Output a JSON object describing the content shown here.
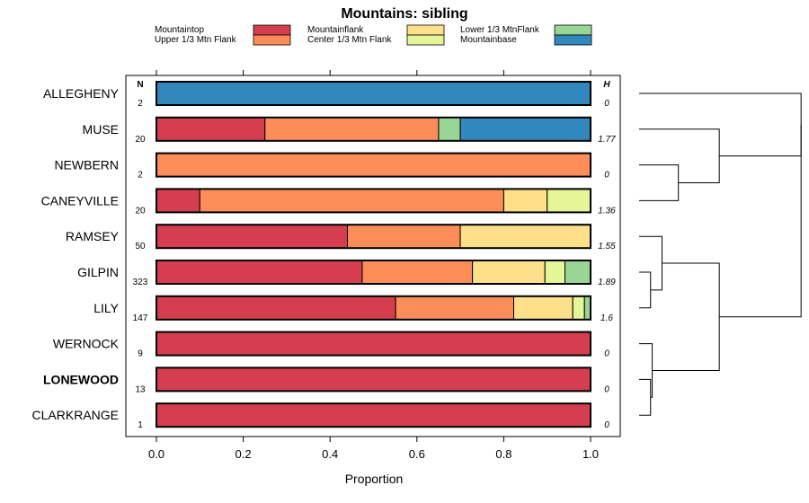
{
  "chart_data": {
    "type": "bar",
    "orientation": "horizontal",
    "stacked": true,
    "title": "Mountains: sibling",
    "xlabel": "Proportion",
    "ylabel": "",
    "xlim": [
      0,
      1
    ],
    "xticks": [
      "0.0",
      "0.2",
      "0.4",
      "0.6",
      "0.8",
      "1.0"
    ],
    "n_header": "N",
    "h_header": "H",
    "legend": [
      {
        "name": "Mountaintop",
        "color": "#d53e4f"
      },
      {
        "name": "Upper 1/3 Mtn Flank",
        "color": "#fc8d59"
      },
      {
        "name": "Mountainflank",
        "color": "#fee08b"
      },
      {
        "name": "Center 1/3 Mtn Flank",
        "color": "#e6f598"
      },
      {
        "name": "Lower 1/3 MtnFlank",
        "color": "#99d594"
      },
      {
        "name": "Mountainbase",
        "color": "#3288bd"
      }
    ],
    "categories": [
      "ALLEGHENY",
      "MUSE",
      "NEWBERN",
      "CANEYVILLE",
      "RAMSEY",
      "GILPIN",
      "LILY",
      "WERNOCK",
      "LONEWOOD",
      "CLARKRANGE"
    ],
    "bold_category": "LONEWOOD",
    "n_values": [
      "2",
      "20",
      "2",
      "20",
      "50",
      "323",
      "147",
      "9",
      "13",
      "1"
    ],
    "h_values": [
      "0",
      "1.77",
      "0",
      "1.36",
      "1.55",
      "1.89",
      "1.6",
      "0",
      "0",
      "0"
    ],
    "segments": [
      [
        {
          "c": 5,
          "v": 1.0
        }
      ],
      [
        {
          "c": 0,
          "v": 0.25
        },
        {
          "c": 1,
          "v": 0.4
        },
        {
          "c": 4,
          "v": 0.05
        },
        {
          "c": 5,
          "v": 0.3
        }
      ],
      [
        {
          "c": 1,
          "v": 1.0
        }
      ],
      [
        {
          "c": 0,
          "v": 0.1
        },
        {
          "c": 1,
          "v": 0.7
        },
        {
          "c": 2,
          "v": 0.1
        },
        {
          "c": 3,
          "v": 0.1
        }
      ],
      [
        {
          "c": 0,
          "v": 0.44
        },
        {
          "c": 1,
          "v": 0.26
        },
        {
          "c": 2,
          "v": 0.3
        }
      ],
      [
        {
          "c": 0,
          "v": 0.474
        },
        {
          "c": 1,
          "v": 0.254
        },
        {
          "c": 2,
          "v": 0.167
        },
        {
          "c": 3,
          "v": 0.046
        },
        {
          "c": 4,
          "v": 0.059
        }
      ],
      [
        {
          "c": 0,
          "v": 0.551
        },
        {
          "c": 1,
          "v": 0.272
        },
        {
          "c": 2,
          "v": 0.136
        },
        {
          "c": 3,
          "v": 0.027
        },
        {
          "c": 4,
          "v": 0.014
        }
      ],
      [
        {
          "c": 0,
          "v": 1.0
        }
      ],
      [
        {
          "c": 0,
          "v": 1.0
        }
      ],
      [
        {
          "c": 0,
          "v": 1.0
        }
      ]
    ],
    "dendrogram": {
      "leaves": [
        "ALLEGHENY",
        "MUSE",
        "NEWBERN",
        "CANEYVILLE",
        "RAMSEY",
        "GILPIN",
        "LILY",
        "WERNOCK",
        "LONEWOOD",
        "CLARKRANGE"
      ],
      "merges": [
        {
          "a": "L2",
          "b": "L3",
          "h": 0.24
        },
        {
          "a": "L5",
          "b": "L6",
          "h": 0.07
        },
        {
          "a": "L4",
          "b": "N1",
          "h": 0.14
        },
        {
          "a": "L8",
          "b": "L9",
          "h": 0.07
        },
        {
          "a": "L7",
          "b": "N3",
          "h": 0.08
        },
        {
          "a": "L1",
          "b": "N0",
          "h": 0.49
        },
        {
          "a": "N2",
          "b": "N4",
          "h": 0.49
        },
        {
          "a": "L0",
          "b": "N5",
          "h": 0.99
        },
        {
          "a": "N7",
          "b": "N6",
          "h": 0.99
        }
      ]
    }
  }
}
